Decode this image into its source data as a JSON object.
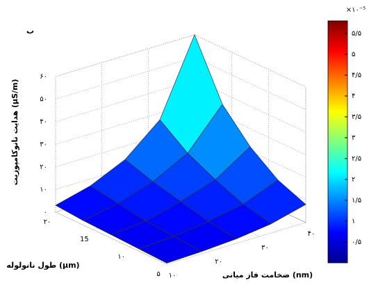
{
  "chart_data": {
    "type": "surface",
    "panel_label": "ب",
    "zlabel": "هدایت نانوکامپوزیت (μS/m)",
    "ylabel": "طول نانولوله (μm)",
    "xlabel": "ضخامت فاز میانی (nm)",
    "x": [
      10,
      17.5,
      25,
      32.5,
      40
    ],
    "y": [
      5,
      8.75,
      12.5,
      16.25,
      20
    ],
    "z": [
      [
        0.5,
        1,
        2,
        4,
        8
      ],
      [
        1,
        2,
        4,
        7,
        13
      ],
      [
        1.5,
        3,
        7,
        12,
        22
      ],
      [
        2,
        5,
        10,
        18,
        35
      ],
      [
        3,
        7,
        14,
        27,
        60
      ]
    ],
    "xlim": [
      10,
      40
    ],
    "ylim": [
      5,
      20
    ],
    "zlim": [
      0,
      60
    ],
    "xticks": [
      {
        "value": 10,
        "label": "۱۰"
      },
      {
        "value": 20,
        "label": "۲۰"
      },
      {
        "value": 30,
        "label": "۳۰"
      },
      {
        "value": 40,
        "label": "۴۰"
      }
    ],
    "yticks": [
      {
        "value": 5,
        "label": "۵"
      },
      {
        "value": 10,
        "label": "۱۰"
      },
      15,
      {
        "value": 20,
        "label": "۲۰"
      }
    ],
    "zticks": [
      {
        "value": 0,
        "label": "۰"
      },
      {
        "value": 10,
        "label": "۱۰"
      },
      {
        "value": 20,
        "label": "۲۰"
      },
      {
        "value": 30,
        "label": "۳۰"
      },
      {
        "value": 40,
        "label": "۴۰"
      },
      {
        "value": 50,
        "label": "۵۰"
      },
      {
        "value": 60,
        "label": "۶۰"
      }
    ],
    "grid": true,
    "colorbar": {
      "lim": [
        0,
        5.8
      ],
      "exponent_label": "×۱۰⁻⁵",
      "ticks": [
        {
          "value": 0.5,
          "label": "۰/۵"
        },
        {
          "value": 1,
          "label": "۱"
        },
        {
          "value": 1.5,
          "label": "۱/۵"
        },
        {
          "value": 2,
          "label": "۲"
        },
        {
          "value": 2.5,
          "label": "۲/۵"
        },
        {
          "value": 3,
          "label": "۳"
        },
        {
          "value": 3.5,
          "label": "۳/۵"
        },
        {
          "value": 4,
          "label": "۴"
        },
        {
          "value": 4.5,
          "label": "۴/۵"
        },
        {
          "value": 5,
          "label": "۵"
        },
        {
          "value": 5.5,
          "label": "۵/۵"
        }
      ]
    }
  }
}
